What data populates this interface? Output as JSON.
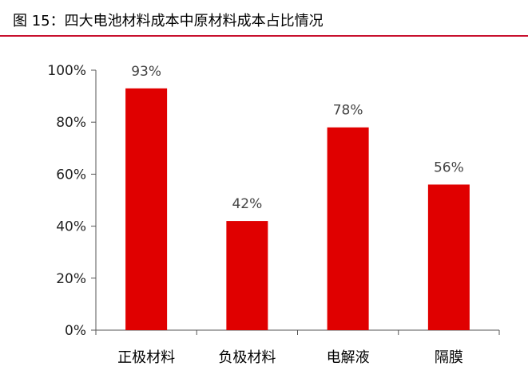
{
  "title": "图 15：四大电池材料成本中原材料成本占比情况",
  "colors": {
    "bar": "#e00000",
    "title_rule": "#c8102e"
  },
  "chart_data": {
    "type": "bar",
    "title": "",
    "xlabel": "",
    "ylabel": "",
    "categories": [
      "正极材料",
      "负极材料",
      "电解液",
      "隔膜"
    ],
    "values": [
      93,
      42,
      78,
      56
    ],
    "data_labels": [
      "93%",
      "42%",
      "78%",
      "56%"
    ],
    "ylim": [
      0,
      100
    ],
    "yticks": [
      0,
      20,
      40,
      60,
      80,
      100
    ],
    "ytick_labels": [
      "0%",
      "20%",
      "40%",
      "60%",
      "80%",
      "100%"
    ],
    "grid": false,
    "legend": "none"
  }
}
